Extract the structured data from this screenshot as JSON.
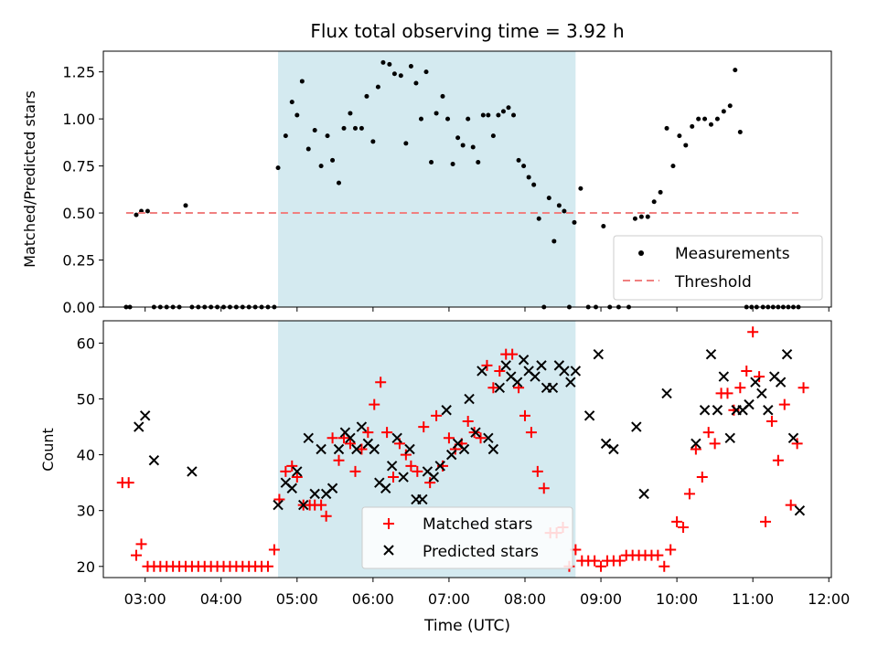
{
  "chart_data": [
    {
      "type": "scatter",
      "title": "Flux total observing time = 3.92 h",
      "xlabel": "",
      "ylabel": "Matched/Predicted stars",
      "ylim": [
        0,
        1.36
      ],
      "yticks": [
        "0.00",
        "0.25",
        "0.50",
        "0.75",
        "1.00",
        "1.25"
      ],
      "shaded_interval": {
        "start": "04:45",
        "end": "08:40",
        "color": "#d4eaf0"
      },
      "legend": {
        "placement": "lower-right",
        "entries": [
          "Measurements",
          "Threshold"
        ]
      },
      "series": [
        {
          "name": "Measurements",
          "color": "#000000",
          "x": [
            "02:45",
            "02:48",
            "02:53",
            "02:57",
            "03:02",
            "03:07",
            "03:12",
            "03:17",
            "03:22",
            "03:27",
            "03:32",
            "03:37",
            "03:42",
            "03:47",
            "03:52",
            "03:57",
            "04:02",
            "04:07",
            "04:12",
            "04:17",
            "04:22",
            "04:27",
            "04:32",
            "04:37",
            "04:42",
            "04:45",
            "04:51",
            "04:56",
            "05:00",
            "05:04",
            "05:09",
            "05:14",
            "05:19",
            "05:24",
            "05:28",
            "05:33",
            "05:37",
            "05:42",
            "05:46",
            "05:51",
            "05:55",
            "06:00",
            "06:04",
            "06:08",
            "06:13",
            "06:17",
            "06:22",
            "06:26",
            "06:30",
            "06:34",
            "06:38",
            "06:42",
            "06:46",
            "06:50",
            "06:55",
            "06:59",
            "07:03",
            "07:07",
            "07:11",
            "07:15",
            "07:19",
            "07:23",
            "07:27",
            "07:31",
            "07:35",
            "07:39",
            "07:43",
            "07:47",
            "07:51",
            "07:55",
            "07:59",
            "08:03",
            "08:07",
            "08:11",
            "08:15",
            "08:19",
            "08:23",
            "08:27",
            "08:31",
            "08:35",
            "08:39",
            "08:44",
            "08:50",
            "08:56",
            "09:02",
            "09:07",
            "09:14",
            "09:22",
            "09:27",
            "09:32",
            "09:37",
            "09:42",
            "09:47",
            "09:52",
            "09:57",
            "10:02",
            "10:07",
            "10:12",
            "10:17",
            "10:22",
            "10:27",
            "10:32",
            "10:37",
            "10:42",
            "10:46",
            "10:50",
            "10:55",
            "10:59",
            "11:03",
            "11:08",
            "11:12",
            "11:16",
            "11:20",
            "11:24",
            "11:28",
            "11:32",
            "11:36"
          ],
          "y": [
            0.0,
            0.0,
            0.49,
            0.51,
            0.51,
            0.0,
            0.0,
            0.0,
            0.0,
            0.0,
            0.54,
            0.0,
            0.0,
            0.0,
            0.0,
            0.0,
            0.0,
            0.0,
            0.0,
            0.0,
            0.0,
            0.0,
            0.0,
            0.0,
            0.0,
            0.74,
            0.91,
            1.09,
            1.02,
            1.2,
            0.84,
            0.94,
            0.75,
            0.91,
            0.78,
            0.66,
            0.95,
            1.03,
            0.95,
            0.95,
            1.12,
            0.88,
            1.17,
            1.3,
            1.29,
            1.24,
            1.23,
            0.87,
            1.28,
            1.19,
            1.0,
            1.25,
            0.77,
            1.03,
            1.12,
            1.0,
            0.76,
            0.9,
            0.86,
            1.0,
            0.85,
            0.77,
            1.02,
            1.02,
            0.91,
            1.02,
            1.04,
            1.06,
            1.02,
            0.78,
            0.75,
            0.69,
            0.65,
            0.47,
            0.0,
            0.58,
            0.35,
            0.54,
            0.51,
            0.0,
            0.45,
            0.63,
            0.0,
            0.0,
            0.43,
            0.0,
            0.0,
            0.0,
            0.47,
            0.48,
            0.48,
            0.56,
            0.61,
            0.95,
            0.75,
            0.91,
            0.86,
            0.96,
            1.0,
            1.0,
            0.97,
            1.0,
            1.04,
            1.07,
            1.26,
            0.93,
            0.0,
            0.0,
            0.0,
            0.0,
            0.0,
            0.0,
            0.0,
            0.0,
            0.0,
            0.0,
            0.0
          ]
        },
        {
          "name": "Threshold",
          "style": "dashed",
          "color": "#f08080",
          "x": [
            "02:45",
            "11:36"
          ],
          "y": [
            0.5,
            0.5
          ]
        }
      ]
    },
    {
      "type": "scatter",
      "title": "",
      "xlabel": "Time (UTC)",
      "ylabel": "Count",
      "ylim": [
        18,
        64
      ],
      "yticks": [
        "20",
        "30",
        "40",
        "50",
        "60"
      ],
      "xticks": [
        "03:00",
        "04:00",
        "05:00",
        "06:00",
        "07:00",
        "08:00",
        "09:00",
        "10:00",
        "11:00",
        "12:00"
      ],
      "xlim": [
        "02:27",
        "12:02"
      ],
      "shaded_interval": {
        "start": "04:45",
        "end": "08:40",
        "color": "#d4eaf0"
      },
      "legend": {
        "placement": "lower-center",
        "entries": [
          "Matched stars",
          "Predicted stars"
        ]
      },
      "series": [
        {
          "name": "Matched stars",
          "marker": "+",
          "color": "#ff0000",
          "x": [
            "02:42",
            "02:47",
            "02:53",
            "02:57",
            "03:02",
            "03:07",
            "03:12",
            "03:17",
            "03:22",
            "03:27",
            "03:32",
            "03:37",
            "03:42",
            "03:47",
            "03:52",
            "03:57",
            "04:02",
            "04:07",
            "04:12",
            "04:17",
            "04:22",
            "04:27",
            "04:32",
            "04:37",
            "04:42",
            "04:46",
            "04:51",
            "04:56",
            "05:00",
            "05:05",
            "05:10",
            "05:14",
            "05:19",
            "05:23",
            "05:28",
            "05:33",
            "05:37",
            "05:42",
            "05:46",
            "05:51",
            "05:56",
            "06:01",
            "06:06",
            "06:11",
            "06:16",
            "06:21",
            "06:26",
            "06:30",
            "06:35",
            "06:40",
            "06:45",
            "06:50",
            "06:55",
            "07:00",
            "07:05",
            "07:10",
            "07:15",
            "07:20",
            "07:25",
            "07:30",
            "07:35",
            "07:40",
            "07:45",
            "07:50",
            "07:55",
            "08:00",
            "08:05",
            "08:10",
            "08:15",
            "08:20",
            "08:25",
            "08:30",
            "08:35",
            "08:40",
            "08:45",
            "08:50",
            "08:55",
            "09:00",
            "09:05",
            "09:10",
            "09:15",
            "09:20",
            "09:25",
            "09:30",
            "09:35",
            "09:40",
            "09:45",
            "09:50",
            "09:55",
            "10:00",
            "10:05",
            "10:10",
            "10:15",
            "10:20",
            "10:25",
            "10:30",
            "10:35",
            "10:40",
            "10:45",
            "10:50",
            "10:55",
            "11:00",
            "11:05",
            "11:10",
            "11:15",
            "11:20",
            "11:25",
            "11:30",
            "11:35",
            "11:40"
          ],
          "y": [
            35,
            35,
            22,
            24,
            20,
            20,
            20,
            20,
            20,
            20,
            20,
            20,
            20,
            20,
            20,
            20,
            20,
            20,
            20,
            20,
            20,
            20,
            20,
            20,
            23,
            32,
            37,
            38,
            36,
            31,
            31,
            31,
            31,
            29,
            43,
            39,
            43,
            42,
            37,
            41,
            44,
            49,
            53,
            44,
            36,
            42,
            40,
            38,
            37,
            45,
            35,
            47,
            38,
            43,
            41,
            42,
            46,
            44,
            43,
            56,
            52,
            55,
            58,
            58,
            52,
            47,
            44,
            37,
            34,
            26,
            26,
            27,
            20,
            23,
            21,
            21,
            21,
            20,
            21,
            21,
            21,
            22,
            22,
            22,
            22,
            22,
            22,
            20,
            23,
            28,
            27,
            33,
            41,
            36,
            44,
            42,
            51,
            51,
            48,
            52,
            55,
            62,
            54,
            28,
            46,
            39,
            49,
            31,
            42,
            52
          ],
          "count": 110
        },
        {
          "name": "Predicted stars",
          "marker": "x",
          "color": "#000000",
          "x": [
            "02:55",
            "03:00",
            "03:07",
            "03:37",
            "04:45",
            "04:51",
            "04:56",
            "05:00",
            "05:05",
            "05:09",
            "05:14",
            "05:19",
            "05:23",
            "05:28",
            "05:33",
            "05:38",
            "05:42",
            "05:47",
            "05:51",
            "05:56",
            "06:01",
            "06:05",
            "06:10",
            "06:15",
            "06:19",
            "06:24",
            "06:29",
            "06:34",
            "06:39",
            "06:43",
            "06:48",
            "06:53",
            "06:58",
            "07:02",
            "07:07",
            "07:12",
            "07:16",
            "07:21",
            "07:26",
            "07:31",
            "07:35",
            "07:40",
            "07:45",
            "07:49",
            "07:54",
            "07:59",
            "08:03",
            "08:08",
            "08:13",
            "08:17",
            "08:22",
            "08:27",
            "08:31",
            "08:36",
            "08:40",
            "08:51",
            "08:58",
            "09:04",
            "09:10",
            "09:28",
            "09:34",
            "09:52",
            "10:15",
            "10:22",
            "10:27",
            "10:32",
            "10:37",
            "10:42",
            "10:47",
            "10:52",
            "10:57",
            "11:02",
            "11:07",
            "11:12",
            "11:17",
            "11:22",
            "11:27",
            "11:32",
            "11:37"
          ],
          "y": [
            45,
            47,
            39,
            37,
            31,
            35,
            34,
            37,
            31,
            43,
            33,
            41,
            33,
            34,
            41,
            44,
            43,
            41,
            45,
            42,
            41,
            35,
            34,
            38,
            43,
            36,
            41,
            32,
            32,
            37,
            36,
            38,
            48,
            40,
            42,
            41,
            50,
            44,
            55,
            43,
            41,
            52,
            56,
            54,
            53,
            57,
            55,
            54,
            56,
            52,
            52,
            56,
            55,
            53,
            55,
            47,
            58,
            42,
            41,
            45,
            33,
            51,
            42,
            48,
            58,
            48,
            54,
            43,
            48,
            48,
            49,
            53,
            51,
            48,
            54,
            53,
            58,
            43,
            30
          ],
          "count": 79
        }
      ]
    }
  ],
  "ui": {
    "title": "Flux total observing time = 3.92 h",
    "ylabel_top": "Matched/Predicted stars",
    "ylabel_bottom": "Count",
    "xlabel": "Time (UTC)",
    "legend_top": [
      "Measurements",
      "Threshold"
    ],
    "legend_bottom": [
      "Matched stars",
      "Predicted stars"
    ]
  }
}
